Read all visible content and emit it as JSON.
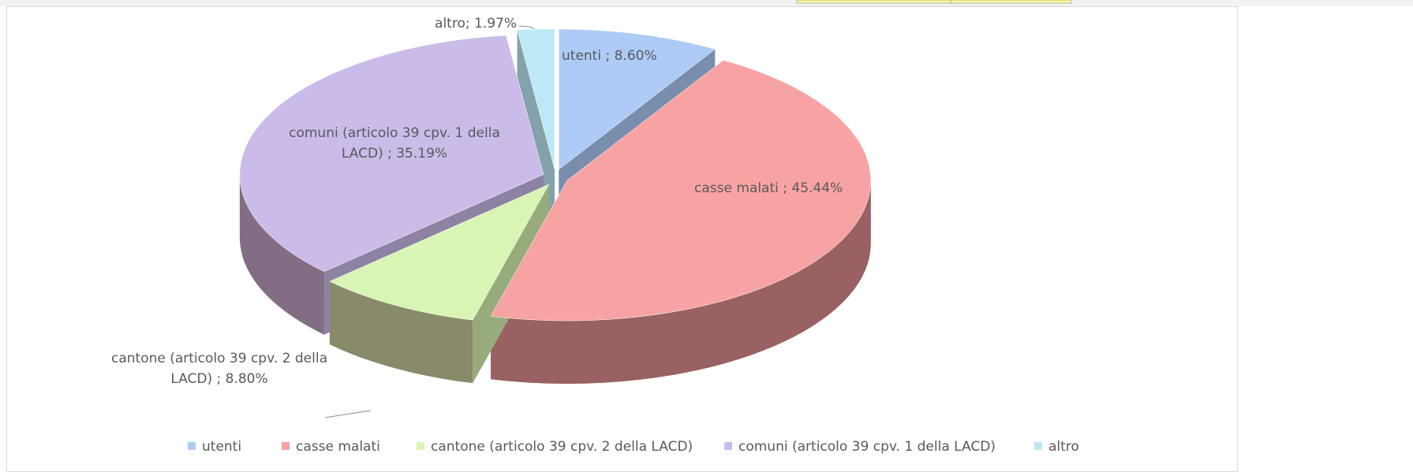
{
  "chart_data": {
    "type": "pie",
    "categories": [
      "utenti",
      "casse malati",
      "cantone (articolo 39 cpv. 2 della LACD)",
      "comuni (articolo 39 cpv. 1 della LACD)",
      "altro"
    ],
    "values": [
      8.6,
      45.44,
      8.8,
      35.19,
      1.97
    ],
    "value_labels": [
      "utenti ; 8.60%",
      "casse malati ; 45.44%",
      "cantone (articolo 39 cpv. 2 della LACD) ; 8.80%",
      "comuni (articolo 39 cpv. 1 della LACD) ; 35.19%",
      "altro; 1.97%"
    ],
    "colors": [
      "#aecbf7",
      "#f8a3a3",
      "#d8f5b4",
      "#cbbbe9",
      "#bde9f6"
    ],
    "legend": "bottom"
  }
}
